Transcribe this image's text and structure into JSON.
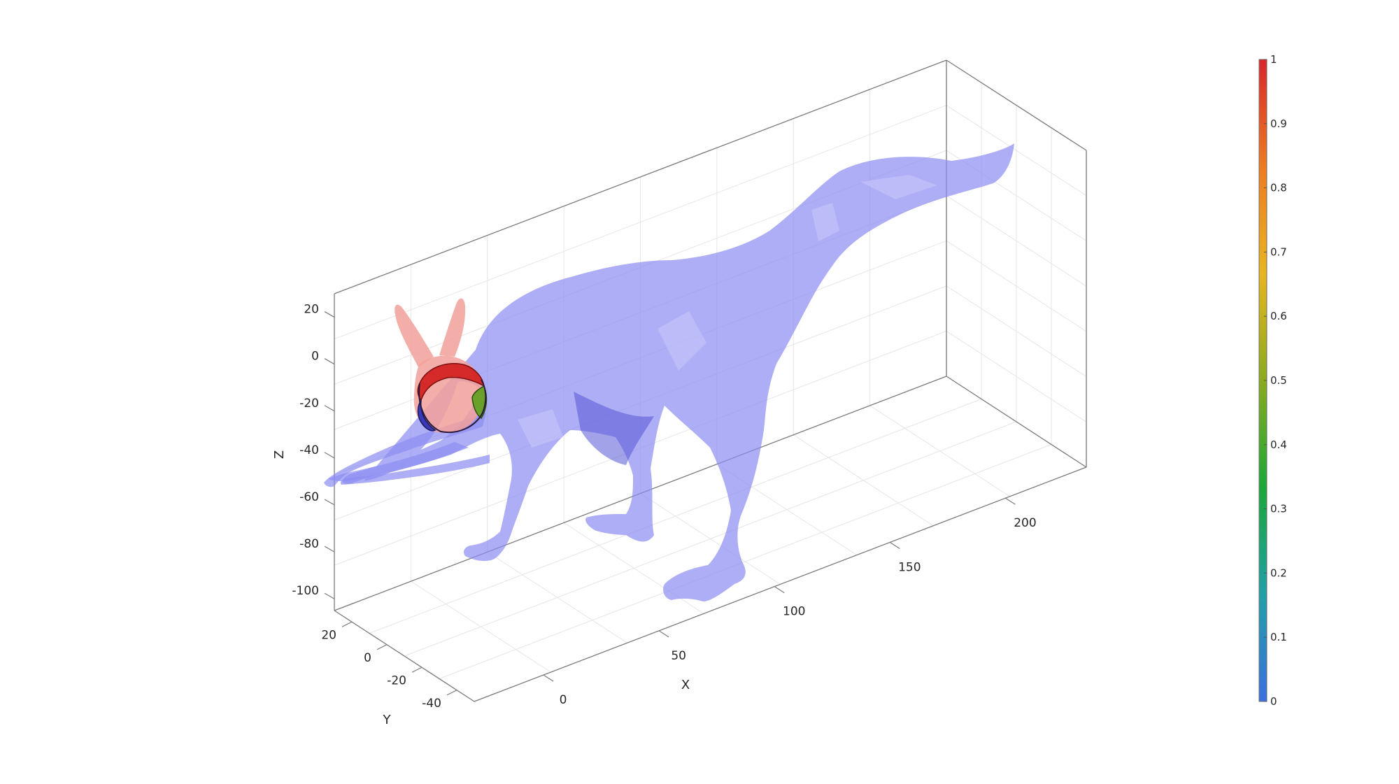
{
  "chart_data": {
    "type": "3d-surface",
    "title": "",
    "xlabel": "X",
    "ylabel": "Y",
    "zlabel": "Z",
    "xticks": [
      "0",
      "50",
      "100",
      "150",
      "200"
    ],
    "yticks": [
      "20",
      "0",
      "-20",
      "-40"
    ],
    "zticks": [
      "20",
      "0",
      "-20",
      "-40",
      "-60",
      "-80",
      "-100"
    ],
    "grid": true,
    "box": true,
    "meshes": [
      {
        "shape": "dinosaur",
        "color": "#8c8cf2",
        "opacity": 0.7
      },
      {
        "shape": "bunny",
        "color": "#f2a09a",
        "opacity": 0.85
      }
    ],
    "colorbar": {
      "location": "right",
      "range": [
        0,
        1
      ],
      "ticks": [
        "0",
        "0.1",
        "0.2",
        "0.3",
        "0.4",
        "0.5",
        "0.6",
        "0.7",
        "0.8",
        "0.9",
        "1"
      ],
      "colors": [
        "#3b6fe0",
        "#1fa0a8",
        "#19a838",
        "#8aab1c",
        "#e8b520",
        "#ee7a1f",
        "#d9262a"
      ]
    }
  }
}
